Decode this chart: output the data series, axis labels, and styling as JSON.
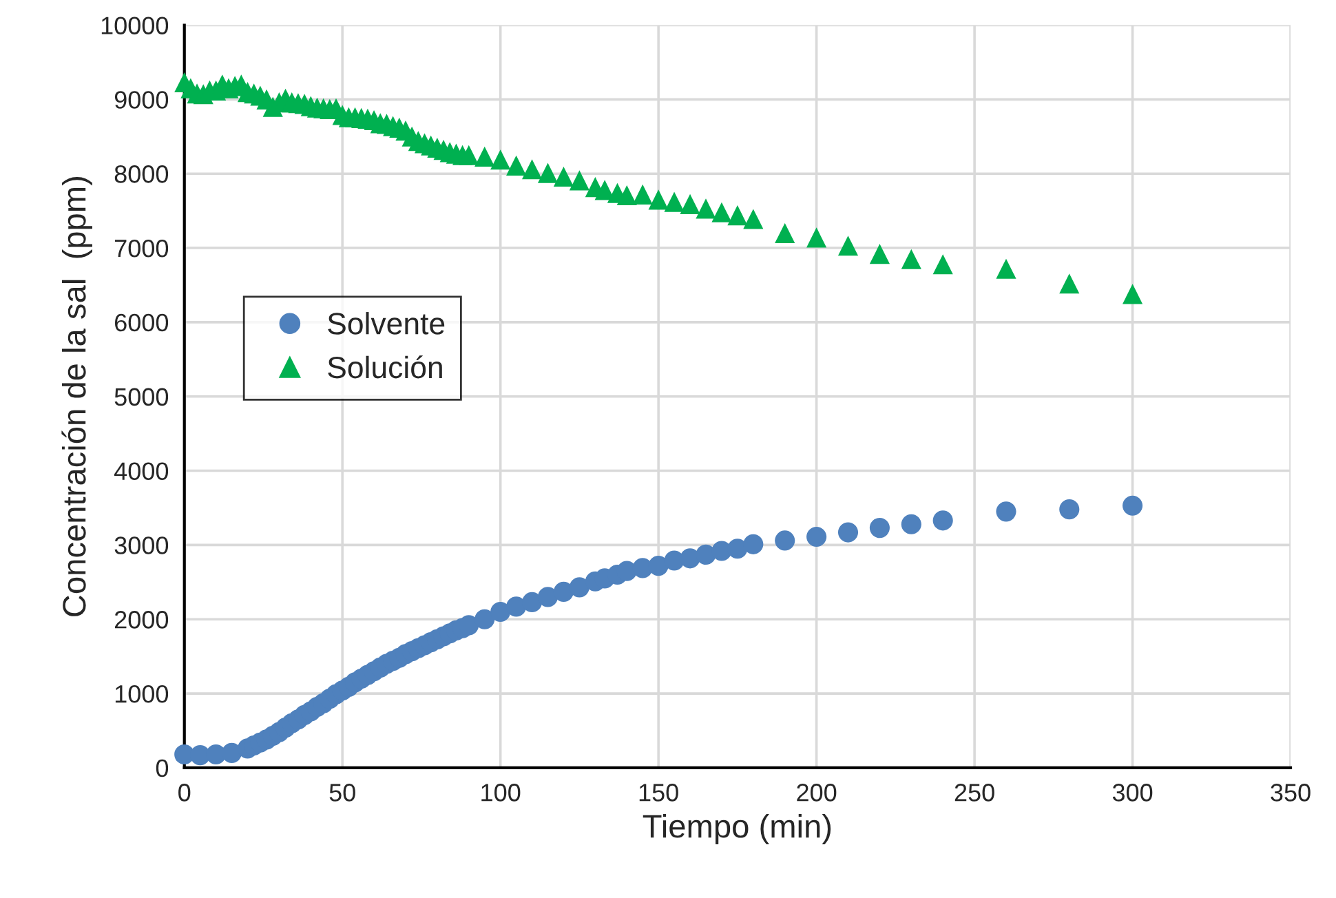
{
  "chart_data": {
    "type": "scatter",
    "xlabel": "Tiempo (min)",
    "ylabel": "Concentración de la sal  (ppm)",
    "xlim": [
      0,
      350
    ],
    "xticks": [
      0,
      50,
      100,
      150,
      200,
      250,
      300,
      350
    ],
    "ylim": [
      0,
      10000
    ],
    "yticks": [
      0,
      1000,
      2000,
      3000,
      4000,
      5000,
      6000,
      7000,
      8000,
      9000,
      10000
    ],
    "grid": true,
    "legend": "left",
    "series": [
      {
        "name": "Solvente",
        "color": "#4f81bd",
        "marker": "circle",
        "x": [
          0,
          5,
          10,
          15,
          20,
          22,
          24,
          26,
          28,
          30,
          32,
          34,
          36,
          38,
          40,
          42,
          44,
          46,
          48,
          50,
          52,
          54,
          56,
          58,
          60,
          62,
          64,
          66,
          68,
          70,
          72,
          74,
          76,
          78,
          80,
          82,
          84,
          86,
          88,
          90,
          95,
          100,
          105,
          110,
          115,
          120,
          125,
          130,
          133,
          137,
          140,
          145,
          150,
          155,
          160,
          165,
          170,
          175,
          180,
          190,
          200,
          210,
          220,
          230,
          240,
          260,
          280,
          300
        ],
        "values": [
          180,
          170,
          180,
          200,
          260,
          300,
          340,
          380,
          430,
          480,
          540,
          600,
          650,
          710,
          760,
          820,
          870,
          930,
          990,
          1040,
          1090,
          1150,
          1200,
          1250,
          1300,
          1350,
          1400,
          1440,
          1480,
          1530,
          1570,
          1610,
          1650,
          1690,
          1730,
          1770,
          1810,
          1850,
          1880,
          1920,
          2000,
          2100,
          2170,
          2230,
          2300,
          2370,
          2430,
          2510,
          2550,
          2600,
          2650,
          2690,
          2720,
          2790,
          2820,
          2870,
          2920,
          2950,
          3010,
          3060,
          3110,
          3170,
          3230,
          3280,
          3330,
          3450,
          3480,
          3530
        ]
      },
      {
        "name": "Solución",
        "color": "#00b050",
        "marker": "triangle",
        "x": [
          0,
          2,
          4,
          6,
          8,
          10,
          12,
          14,
          16,
          18,
          20,
          22,
          24,
          26,
          28,
          30,
          32,
          34,
          36,
          38,
          40,
          42,
          44,
          46,
          48,
          50,
          52,
          54,
          56,
          58,
          60,
          62,
          64,
          66,
          68,
          70,
          72,
          74,
          76,
          78,
          80,
          82,
          84,
          86,
          88,
          90,
          95,
          100,
          105,
          110,
          115,
          120,
          125,
          130,
          133,
          137,
          140,
          145,
          150,
          155,
          160,
          165,
          170,
          175,
          180,
          190,
          200,
          210,
          220,
          230,
          240,
          260,
          280,
          300
        ],
        "values": [
          9230,
          9150,
          9080,
          9070,
          9120,
          9120,
          9200,
          9150,
          9180,
          9200,
          9100,
          9080,
          9050,
          9000,
          8900,
          8960,
          9010,
          8960,
          8950,
          8940,
          8910,
          8890,
          8880,
          8870,
          8880,
          8790,
          8760,
          8760,
          8750,
          8740,
          8720,
          8680,
          8670,
          8640,
          8620,
          8580,
          8500,
          8440,
          8410,
          8380,
          8350,
          8320,
          8290,
          8270,
          8250,
          8250,
          8230,
          8190,
          8110,
          8060,
          8010,
          7960,
          7910,
          7820,
          7780,
          7740,
          7710,
          7720,
          7650,
          7620,
          7590,
          7530,
          7480,
          7440,
          7390,
          7200,
          7140,
          7030,
          6920,
          6850,
          6780,
          6720,
          6520,
          6380
        ]
      }
    ]
  }
}
